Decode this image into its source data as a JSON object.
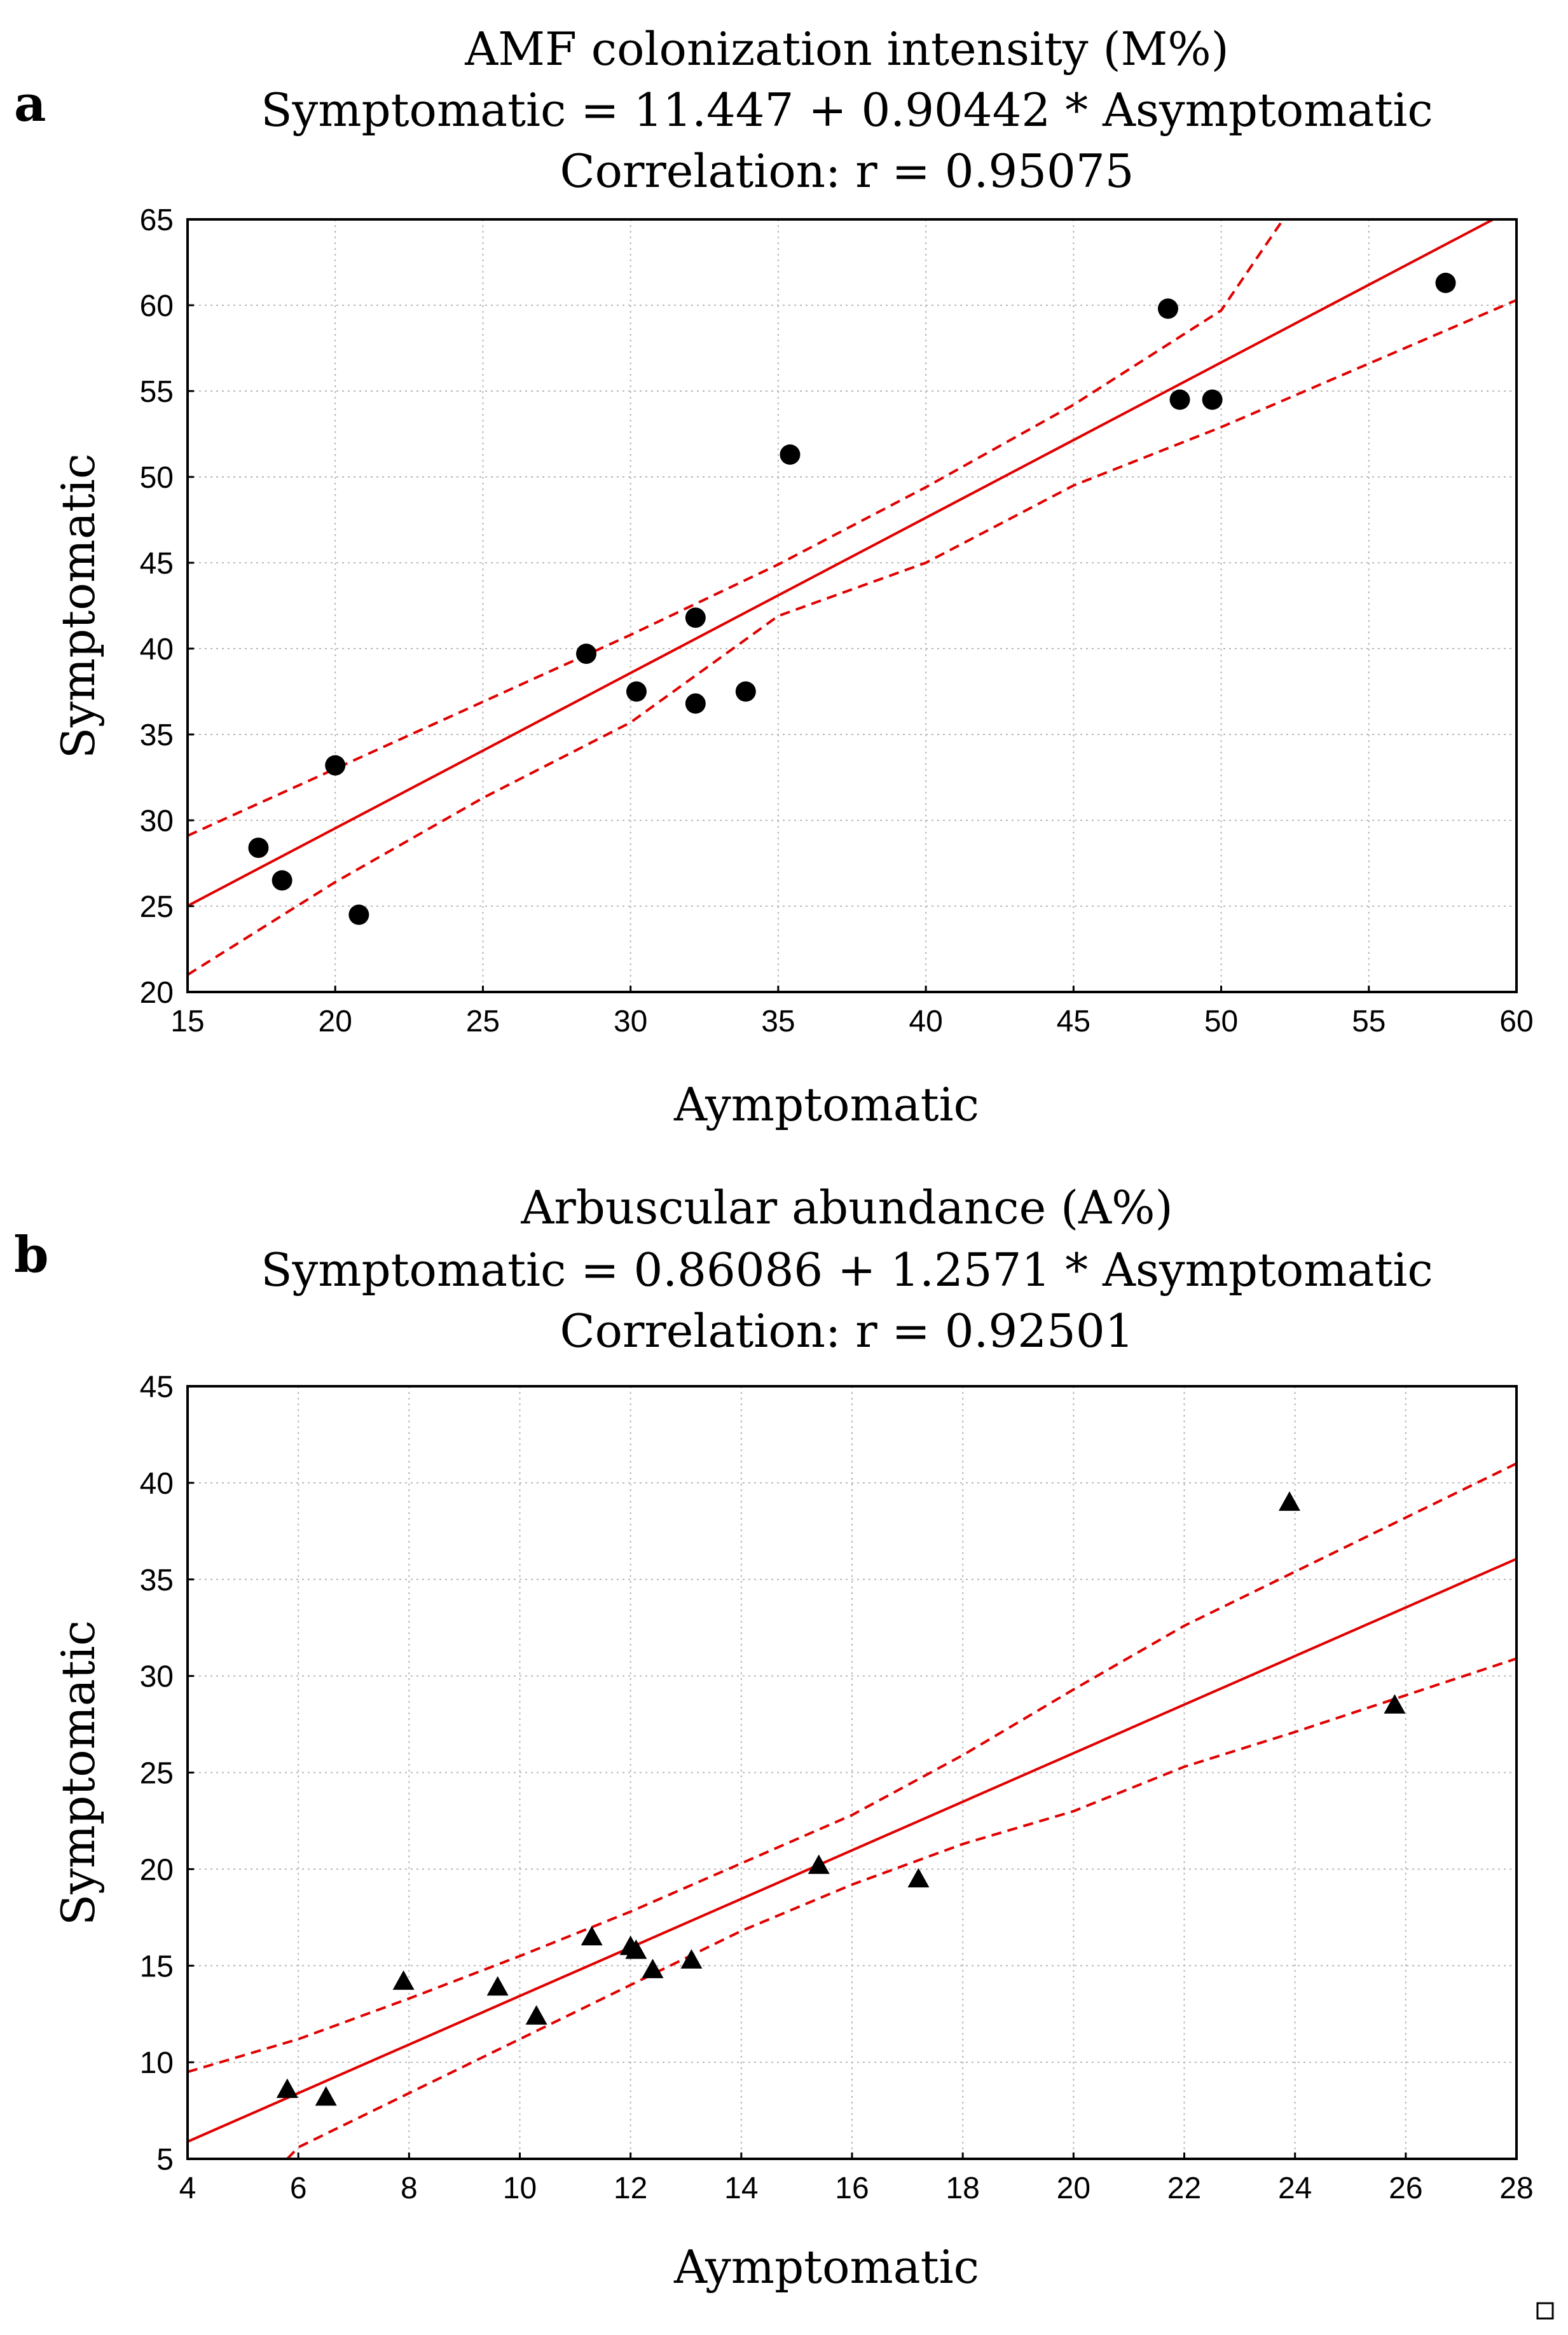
{
  "chart_data": [
    {
      "panel": "a",
      "type": "scatter",
      "title_lines": [
        "AMF colonization intensity (M%)",
        "Symptomatic = 11.447 + 0.90442 * Asymptomatic",
        "Correlation:  r = 0.95075"
      ],
      "xlabel": "Aymptomatic",
      "ylabel": "Symptomatic",
      "xlim": [
        15,
        60
      ],
      "ylim": [
        20,
        65
      ],
      "xticks": [
        15,
        20,
        25,
        30,
        35,
        40,
        45,
        50,
        55,
        60
      ],
      "yticks": [
        20,
        25,
        30,
        35,
        40,
        45,
        50,
        55,
        60,
        65
      ],
      "marker": "circle",
      "grid": true,
      "intercept": 11.447,
      "slope": 0.90442,
      "ci_upper": [
        [
          15,
          29.1
        ],
        [
          20,
          33.0
        ],
        [
          25,
          36.9
        ],
        [
          30,
          40.8
        ],
        [
          35,
          44.9
        ],
        [
          40,
          49.4
        ],
        [
          45,
          54.2
        ],
        [
          50,
          59.7
        ],
        [
          52.1,
          65
        ]
      ],
      "ci_lower": [
        [
          15,
          21.0
        ],
        [
          20,
          26.4
        ],
        [
          25,
          31.3
        ],
        [
          30,
          35.7
        ],
        [
          35,
          41.9
        ],
        [
          40,
          45.0
        ],
        [
          45,
          49.5
        ],
        [
          50,
          52.9
        ],
        [
          55,
          56.6
        ],
        [
          60,
          60.3
        ]
      ],
      "points": [
        {
          "x": 17.4,
          "y": 28.4
        },
        {
          "x": 18.2,
          "y": 26.5
        },
        {
          "x": 20.0,
          "y": 33.2
        },
        {
          "x": 20.8,
          "y": 24.5
        },
        {
          "x": 28.5,
          "y": 39.7
        },
        {
          "x": 30.2,
          "y": 37.5
        },
        {
          "x": 32.2,
          "y": 41.8
        },
        {
          "x": 32.2,
          "y": 36.8
        },
        {
          "x": 33.9,
          "y": 37.5
        },
        {
          "x": 35.4,
          "y": 51.3
        },
        {
          "x": 48.2,
          "y": 59.8
        },
        {
          "x": 48.6,
          "y": 54.5
        },
        {
          "x": 49.7,
          "y": 54.5
        },
        {
          "x": 57.6,
          "y": 61.3
        }
      ]
    },
    {
      "panel": "b",
      "type": "scatter",
      "title_lines": [
        "Arbuscular  abundance  (A%)",
        "Symptomatic = 0.86086 + 1.2571 * Asymptomatic",
        "Correlation:  r = 0.92501"
      ],
      "xlabel": "Aymptomatic",
      "ylabel": "Symptomatic",
      "xlim": [
        4,
        28
      ],
      "ylim": [
        5,
        45
      ],
      "xticks": [
        4,
        6,
        8,
        10,
        12,
        14,
        16,
        18,
        20,
        22,
        24,
        26,
        28
      ],
      "yticks": [
        5,
        10,
        15,
        20,
        25,
        30,
        35,
        40,
        45
      ],
      "marker": "triangle",
      "grid": true,
      "intercept": 0.86086,
      "slope": 1.2571,
      "ci_upper": [
        [
          4,
          9.5
        ],
        [
          6,
          11.2
        ],
        [
          8,
          13.3
        ],
        [
          10,
          15.5
        ],
        [
          12,
          17.8
        ],
        [
          14,
          20.3
        ],
        [
          16,
          22.8
        ],
        [
          18,
          25.9
        ],
        [
          20,
          29.3
        ],
        [
          22,
          32.6
        ],
        [
          24,
          35.4
        ],
        [
          26,
          38.2
        ],
        [
          28,
          41.0
        ]
      ],
      "ci_lower": [
        [
          5.8,
          5.0
        ],
        [
          6,
          5.6
        ],
        [
          8,
          8.4
        ],
        [
          10,
          11.2
        ],
        [
          12,
          14.0
        ],
        [
          14,
          16.8
        ],
        [
          16,
          19.2
        ],
        [
          18,
          21.3
        ],
        [
          20,
          23.0
        ],
        [
          22,
          25.3
        ],
        [
          24,
          27.1
        ],
        [
          26,
          29.0
        ],
        [
          28,
          30.9
        ]
      ],
      "points": [
        {
          "x": 5.8,
          "y": 8.6
        },
        {
          "x": 6.5,
          "y": 8.2
        },
        {
          "x": 7.9,
          "y": 14.2
        },
        {
          "x": 9.6,
          "y": 13.9
        },
        {
          "x": 10.3,
          "y": 12.4
        },
        {
          "x": 11.3,
          "y": 16.5
        },
        {
          "x": 12.0,
          "y": 16.0
        },
        {
          "x": 12.1,
          "y": 15.8
        },
        {
          "x": 12.4,
          "y": 14.8
        },
        {
          "x": 13.1,
          "y": 15.3
        },
        {
          "x": 15.4,
          "y": 20.2
        },
        {
          "x": 17.2,
          "y": 19.5
        },
        {
          "x": 23.9,
          "y": 39.0
        },
        {
          "x": 25.8,
          "y": 28.5
        }
      ]
    }
  ]
}
